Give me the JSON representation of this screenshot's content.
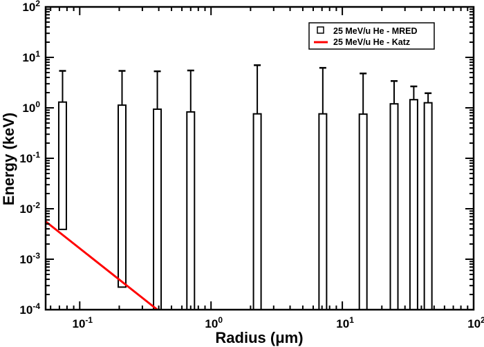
{
  "chart_data": {
    "type": "bar",
    "xlabel": "Radius (μm)",
    "ylabel": "Energy (keV)",
    "x_scale": "log",
    "y_scale": "log",
    "xlim": [
      0.055,
      100
    ],
    "ylim": [
      0.0001,
      100
    ],
    "grid": false,
    "legend_placement": "top-right",
    "x_tick_labels": [
      {
        "base": "10",
        "exp": "-1",
        "value": 0.1
      },
      {
        "base": "10",
        "exp": "0",
        "value": 1
      },
      {
        "base": "10",
        "exp": "1",
        "value": 10
      },
      {
        "base": "10",
        "exp": "2",
        "value": 100
      }
    ],
    "y_tick_labels": [
      {
        "base": "10",
        "exp": "-4",
        "value": 0.0001
      },
      {
        "base": "10",
        "exp": "-3",
        "value": 0.001
      },
      {
        "base": "10",
        "exp": "-2",
        "value": 0.01
      },
      {
        "base": "10",
        "exp": "-1",
        "value": 0.1
      },
      {
        "base": "10",
        "exp": "0",
        "value": 1
      },
      {
        "base": "10",
        "exp": "1",
        "value": 10
      },
      {
        "base": "10",
        "exp": "2",
        "value": 100
      }
    ],
    "series": [
      {
        "name": "25 MeV/u He - MRED",
        "kind": "box-with-error",
        "color": "#000000",
        "points": [
          {
            "x": 0.074,
            "low": 0.0039,
            "value": 1.3,
            "error_high": 5.4
          },
          {
            "x": 0.21,
            "low": 0.00028,
            "value": 1.13,
            "error_high": 5.4
          },
          {
            "x": 0.39,
            "low": 0.0001,
            "value": 0.94,
            "error_high": 5.3
          },
          {
            "x": 0.7,
            "low": 0.0001,
            "value": 0.83,
            "error_high": 5.5
          },
          {
            "x": 2.25,
            "low": 0.0001,
            "value": 0.76,
            "error_high": 7.0
          },
          {
            "x": 7.1,
            "low": 0.0001,
            "value": 0.76,
            "error_high": 6.2
          },
          {
            "x": 14.4,
            "low": 0.0001,
            "value": 0.75,
            "error_high": 4.8
          },
          {
            "x": 24.8,
            "low": 0.0001,
            "value": 1.2,
            "error_high": 3.4
          },
          {
            "x": 35,
            "low": 0.0001,
            "value": 1.45,
            "error_high": 2.66
          },
          {
            "x": 45,
            "low": 0.0001,
            "value": 1.26,
            "error_high": 1.95
          }
        ]
      },
      {
        "name": "25 MeV/u He - Katz",
        "kind": "line",
        "color": "#ff0000",
        "x": [
          0.055,
          0.39
        ],
        "y": [
          0.0056,
          0.0001
        ]
      }
    ]
  }
}
